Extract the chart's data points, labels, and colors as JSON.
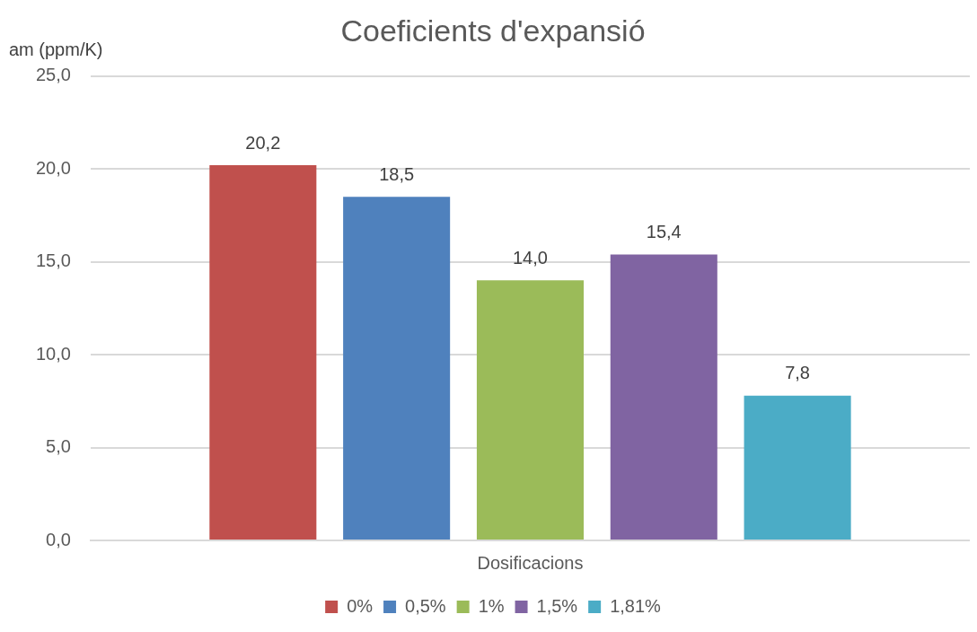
{
  "chart_data": {
    "type": "bar",
    "title": "Coeficients d'expansió",
    "ylabel": "am (ppm/K)",
    "xlabel": null,
    "categories": [
      "Dosificacions"
    ],
    "series": [
      {
        "name": "0%",
        "color": "#c0504d",
        "values": [
          20.2
        ],
        "value_labels": [
          "20,2"
        ]
      },
      {
        "name": "0,5%",
        "color": "#4f81bd",
        "values": [
          18.5
        ],
        "value_labels": [
          "18,5"
        ]
      },
      {
        "name": "1%",
        "color": "#9bbb59",
        "values": [
          14.0
        ],
        "value_labels": [
          "14,0"
        ]
      },
      {
        "name": "1,5%",
        "color": "#8064a2",
        "values": [
          15.4
        ],
        "value_labels": [
          "15,4"
        ]
      },
      {
        "name": "1,81%",
        "color": "#4bacc6",
        "values": [
          7.8
        ],
        "value_labels": [
          "7,8"
        ]
      }
    ],
    "ylim": [
      0,
      25
    ],
    "yticks": [
      {
        "value": 0,
        "label": "0,0"
      },
      {
        "value": 5,
        "label": "5,0"
      },
      {
        "value": 10,
        "label": "10,0"
      },
      {
        "value": 15,
        "label": "15,0"
      },
      {
        "value": 20,
        "label": "20,0"
      },
      {
        "value": 25,
        "label": "25,0"
      }
    ],
    "grid": "y",
    "legend": "bottom"
  }
}
